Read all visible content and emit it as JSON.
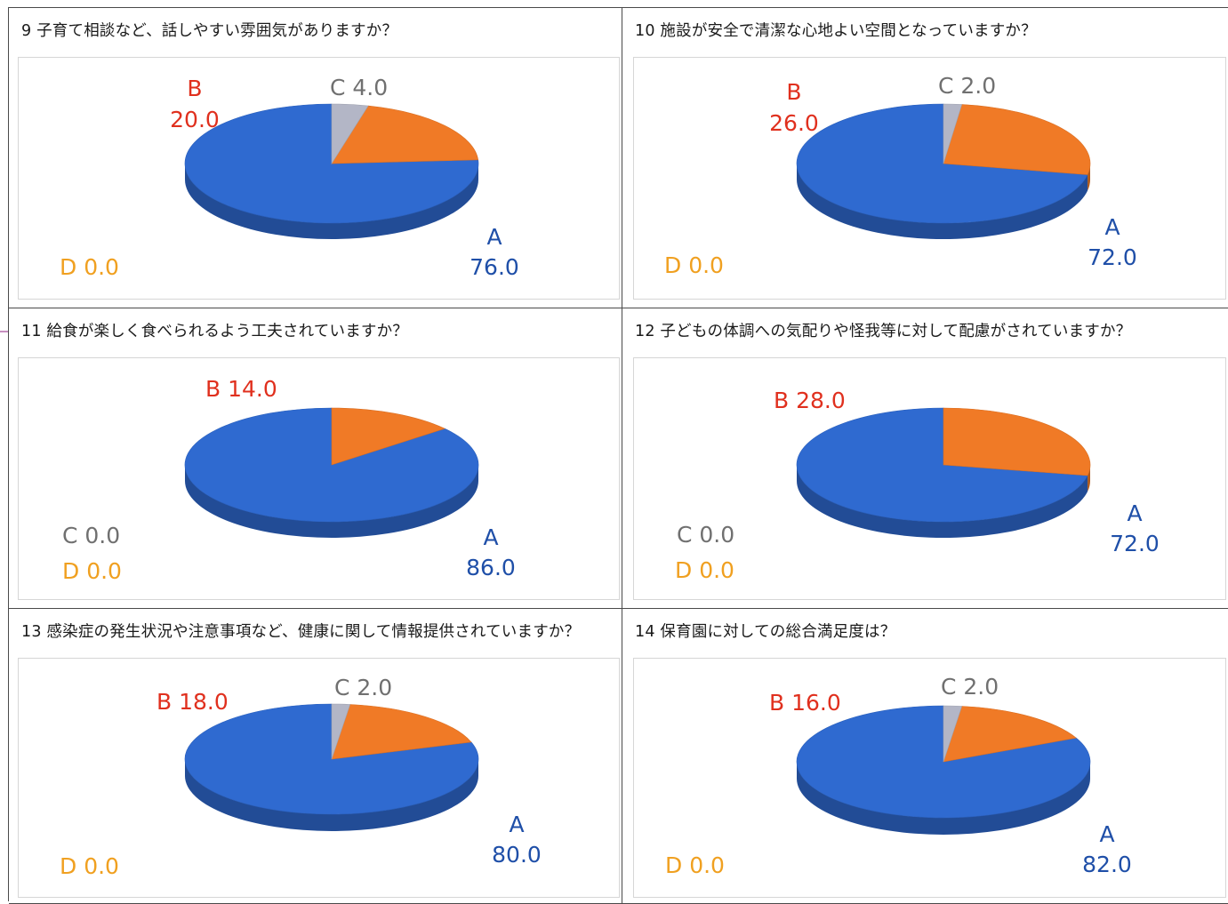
{
  "colors": {
    "A": "#2f6ad0",
    "B": "#f07a26",
    "C": "#b3b6c6",
    "D": "#f0a020"
  },
  "chart_data": [
    {
      "type": "pie",
      "title": "9 子育て相談など、話しやすい雰囲気がありますか？",
      "slices": [
        {
          "name": "A",
          "value": 76.0,
          "label": "A",
          "value_text": "76.0"
        },
        {
          "name": "B",
          "value": 20.0,
          "label": "B",
          "value_text": "20.0"
        },
        {
          "name": "C",
          "value": 4.0,
          "label": "C 4.0"
        },
        {
          "name": "D",
          "value": 0.0,
          "label": "D 0.0"
        }
      ]
    },
    {
      "type": "pie",
      "title": "10 施設が安全で清潔な心地よい空間となっていますか？",
      "slices": [
        {
          "name": "A",
          "value": 72.0,
          "label": "A",
          "value_text": "72.0"
        },
        {
          "name": "B",
          "value": 26.0,
          "label": "B",
          "value_text": "26.0"
        },
        {
          "name": "C",
          "value": 2.0,
          "label": "C 2.0"
        },
        {
          "name": "D",
          "value": 0.0,
          "label": "D 0.0"
        }
      ]
    },
    {
      "type": "pie",
      "title": "11 給食が楽しく食べられるよう工夫されていますか？",
      "slices": [
        {
          "name": "A",
          "value": 86.0,
          "label": "A",
          "value_text": "86.0"
        },
        {
          "name": "B",
          "value": 14.0,
          "label": "B 14.0"
        },
        {
          "name": "C",
          "value": 0.0,
          "label": "C 0.0"
        },
        {
          "name": "D",
          "value": 0.0,
          "label": "D 0.0"
        }
      ]
    },
    {
      "type": "pie",
      "title": "12 子どもの体調への気配りや怪我等に対して配慮がされていますか？",
      "slices": [
        {
          "name": "A",
          "value": 72.0,
          "label": "A",
          "value_text": "72.0"
        },
        {
          "name": "B",
          "value": 28.0,
          "label": "B 28.0"
        },
        {
          "name": "C",
          "value": 0.0,
          "label": "C 0.0"
        },
        {
          "name": "D",
          "value": 0.0,
          "label": "D 0.0"
        }
      ]
    },
    {
      "type": "pie",
      "title": "13 感染症の発生状況や注意事項など、健康に関して情報提供されていますか？",
      "slices": [
        {
          "name": "A",
          "value": 80.0,
          "label": "A",
          "value_text": "80.0"
        },
        {
          "name": "B",
          "value": 18.0,
          "label": "B 18.0"
        },
        {
          "name": "C",
          "value": 2.0,
          "label": "C 2.0"
        },
        {
          "name": "D",
          "value": 0.0,
          "label": "D 0.0"
        }
      ]
    },
    {
      "type": "pie",
      "title": "14 保育園に対しての総合満足度は？",
      "slices": [
        {
          "name": "A",
          "value": 82.0,
          "label": "A",
          "value_text": "82.0"
        },
        {
          "name": "B",
          "value": 16.0,
          "label": "B 16.0"
        },
        {
          "name": "C",
          "value": 2.0,
          "label": "C 2.0"
        },
        {
          "name": "D",
          "value": 0.0,
          "label": "D 0.0"
        }
      ]
    }
  ]
}
